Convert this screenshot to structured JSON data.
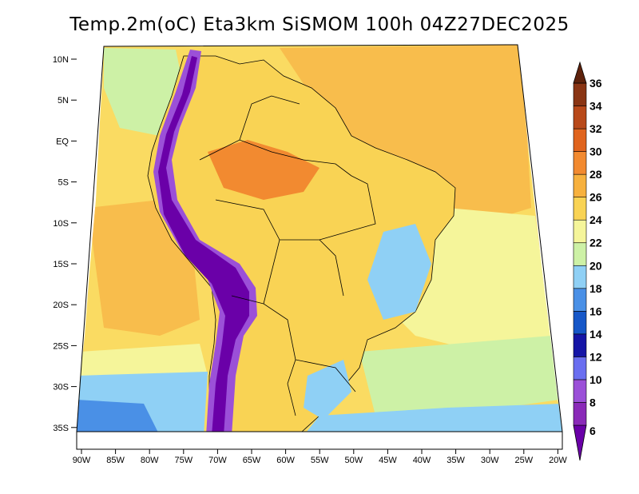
{
  "title": "Temp.2m(oC) Eta3km SiSMOM 100h 04Z27DEC2025",
  "map": {
    "lat_labels": [
      "10N",
      "5N",
      "EQ",
      "5S",
      "10S",
      "15S",
      "20S",
      "25S",
      "30S",
      "35S"
    ],
    "lon_labels": [
      "90W",
      "85W",
      "80W",
      "75W",
      "70W",
      "65W",
      "60W",
      "55W",
      "50W",
      "45W",
      "40W",
      "35W",
      "30W",
      "25W",
      "20W"
    ]
  },
  "colorbar": {
    "labels": [
      "6",
      "8",
      "10",
      "12",
      "14",
      "16",
      "18",
      "20",
      "22",
      "24",
      "26",
      "28",
      "30",
      "32",
      "34",
      "36"
    ],
    "colors": [
      "#6a00a8",
      "#8a2ab8",
      "#9b50d8",
      "#6a6ef0",
      "#1515a6",
      "#1657c8",
      "#4a90e6",
      "#8fd0f5",
      "#cdf1a6",
      "#f5f59a",
      "#f9d354",
      "#f7b13e",
      "#f28a30",
      "#e0641e",
      "#b8491a",
      "#8a3514",
      "#5e220c"
    ]
  },
  "palette": {
    "ocean_warm": "#f8bd4c",
    "ocean_mid": "#fadb62",
    "ocean_cool": "#f5f59a",
    "ocean_green": "#cdf1a6",
    "ocean_cold": "#8fd0f5",
    "ocean_colder": "#4a90e6",
    "land": "#f9d354",
    "land_hot": "#f28a30",
    "andes": "#6a00a8",
    "andes_edge": "#9b50d8"
  }
}
